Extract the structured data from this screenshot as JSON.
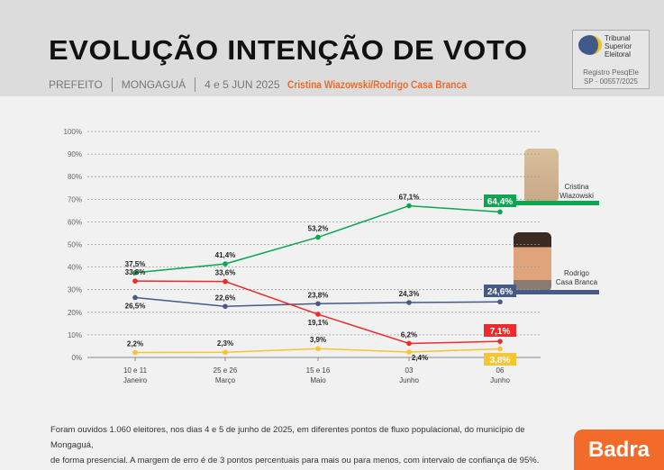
{
  "header": {
    "title": "EVOLUÇÃO INTENÇÃO DE VOTO",
    "office": "PREFEITO",
    "city": "MONGAGUÁ",
    "date": "4 e 5 JUN 2025",
    "candidates": "Cristina Wiazowski/Rodrigo Casa Branca"
  },
  "tse": {
    "name_lines": [
      "Tribunal",
      "Superior",
      "Eleitoral"
    ],
    "registry": "Registro PesqEle",
    "registry_id": "SP - 00557/2025"
  },
  "chart_data": {
    "type": "line",
    "title": "EVOLUÇÃO INTENÇÃO DE VOTO",
    "categories": [
      [
        "10 e 11",
        "Janeiro"
      ],
      [
        "25 e 26",
        "Março"
      ],
      [
        "15 e 16",
        "Maio"
      ],
      [
        "03",
        "Junho"
      ],
      [
        "06",
        "Junho"
      ]
    ],
    "yticks": [
      "0%",
      "10%",
      "20%",
      "30%",
      "40%",
      "50%",
      "60%",
      "70%",
      "80%",
      "90%",
      "100%"
    ],
    "ylim": [
      0,
      100
    ],
    "grid": true,
    "series": [
      {
        "name": "Cristina Wiazowski",
        "color": "#0aa650",
        "values": [
          37.5,
          41.4,
          53.2,
          67.1,
          64.4
        ],
        "labels": [
          "37,5%",
          "41,4%",
          "53,2%",
          "67,1%",
          "64,4%"
        ]
      },
      {
        "name": "Rodrigo Casa Branca",
        "color": "#455a86",
        "values": [
          26.5,
          22.6,
          23.8,
          24.3,
          24.6
        ],
        "labels": [
          "26,5%",
          "22,6%",
          "23,8%",
          "24,3%",
          "24,6%"
        ]
      },
      {
        "name": "red",
        "color": "#ee2a2a",
        "values": [
          33.8,
          33.6,
          19.1,
          6.2,
          7.1
        ],
        "labels": [
          "33,8%",
          "33,6%",
          "19,1%",
          "6,2%",
          "7,1%"
        ]
      },
      {
        "name": "yellow",
        "color": "#f7c531",
        "values": [
          2.2,
          2.3,
          3.9,
          2.4,
          3.8
        ],
        "labels": [
          "2,2%",
          "2,3%",
          "3,9%",
          "2,4%",
          "3,8%"
        ]
      }
    ],
    "legend": [
      {
        "line1": "Cristina",
        "line2": "Wiazowski"
      },
      {
        "line1": "Rodrigo",
        "line2": "Casa Branca"
      }
    ]
  },
  "footer": {
    "line1": "Foram ouvidos 1.060 eleitores, nos dias 4 e 5 de junho de 2025, em diferentes pontos de fluxo populacional, do município de Mongaguá,",
    "line2": "de forma presencial. A margem de erro é de 3 pontos percentuais para mais ou para menos, com intervalo de confiança de 95%."
  },
  "brand": "Badra"
}
